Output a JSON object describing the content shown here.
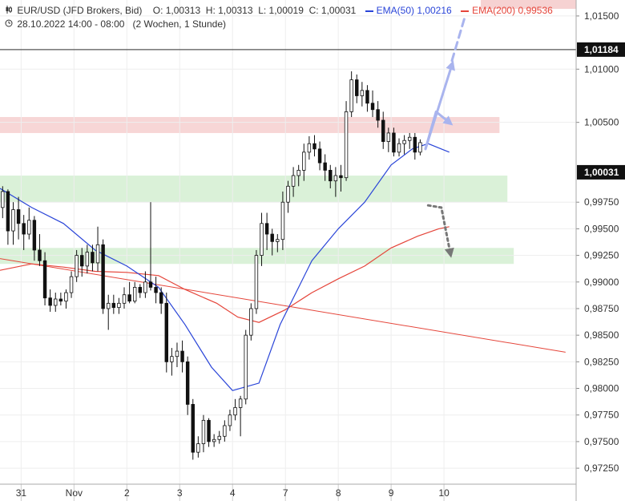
{
  "header": {
    "symbol_icon": "candlestick-icon",
    "clock_icon": "clock-icon",
    "title": "EUR/USD (JFD Brokers, Bid)",
    "open": "O: 1,00313",
    "high": "H: 1,00313",
    "low": "L: 1,00019",
    "close": "C: 1,00031",
    "ema50_label": "EMA(50)",
    "ema50_value": "1,00216",
    "ema200_label": "EMA(200)",
    "ema200_value": "0,99536",
    "date_range": "28.10.2022 14:00 - 08:00",
    "period": "(2 Wochen, 1 Stunde)"
  },
  "colors": {
    "ema50": "#2a45d8",
    "ema200": "#e5453a",
    "resistance_zone": "#f6d2d2",
    "support_zone": "#d6f0d4",
    "arrow_up": "#a9b4ee",
    "arrow_down": "#777777"
  },
  "chart_data": {
    "type": "candlestick",
    "y_ticks": [
      "1,01500",
      "1,01000",
      "1,00500",
      "0,99750",
      "0,99500",
      "0,99250",
      "0,99000",
      "0,98750",
      "0,98500",
      "0,98250",
      "0,98000",
      "0,97750",
      "0,97500",
      "0,97250"
    ],
    "y_range": [
      0.971,
      1.0165
    ],
    "x_labels": [
      "31",
      "Nov",
      "2",
      "3",
      "4",
      "7",
      "8",
      "9",
      "10"
    ],
    "x_label_positions": [
      0.5,
      1.5,
      2.5,
      3.5,
      4.5,
      5.5,
      6.5,
      7.5,
      8.5
    ],
    "x_range": [
      0.1,
      11.0
    ],
    "price_marker": "1,01184",
    "last_price": "1,00031",
    "zones": [
      {
        "name": "resistance",
        "y_from": 1.004,
        "y_to": 1.0055,
        "x_from": 0.1,
        "x_to": 9.55
      },
      {
        "name": "support-upper",
        "y_from": 0.9975,
        "y_to": 1.0,
        "x_from": 0.1,
        "x_to": 9.7
      },
      {
        "name": "support-lower",
        "y_from": 0.9917,
        "y_to": 0.9932,
        "x_from": 0.1,
        "x_to": 9.82
      }
    ],
    "trendline": {
      "from": [
        0.1,
        0.9922
      ],
      "to": [
        10.8,
        0.9834
      ]
    },
    "horizontal_line": 1.01184,
    "ema50": [
      [
        0.1,
        0.9988
      ],
      [
        0.7,
        0.997
      ],
      [
        1.3,
        0.9955
      ],
      [
        1.9,
        0.993
      ],
      [
        2.5,
        0.9915
      ],
      [
        3.1,
        0.9895
      ],
      [
        3.6,
        0.986
      ],
      [
        4.1,
        0.982
      ],
      [
        4.5,
        0.9798
      ],
      [
        5.0,
        0.9805
      ],
      [
        5.4,
        0.986
      ],
      [
        6.0,
        0.992
      ],
      [
        6.5,
        0.995
      ],
      [
        7.0,
        0.9975
      ],
      [
        7.5,
        1.001
      ],
      [
        7.9,
        1.0025
      ],
      [
        8.2,
        1.003
      ],
      [
        8.5,
        1.0024
      ],
      [
        8.6,
        1.0022
      ]
    ],
    "ema200": [
      [
        0.1,
        0.9911
      ],
      [
        0.7,
        0.9917
      ],
      [
        1.3,
        0.9914
      ],
      [
        1.9,
        0.991
      ],
      [
        2.5,
        0.9909
      ],
      [
        3.1,
        0.9906
      ],
      [
        3.6,
        0.9893
      ],
      [
        4.2,
        0.988
      ],
      [
        4.6,
        0.9867
      ],
      [
        5.0,
        0.9862
      ],
      [
        5.5,
        0.9874
      ],
      [
        6.0,
        0.989
      ],
      [
        6.5,
        0.9903
      ],
      [
        7.0,
        0.9915
      ],
      [
        7.5,
        0.9932
      ],
      [
        8.0,
        0.9943
      ],
      [
        8.4,
        0.995
      ],
      [
        8.6,
        0.9952
      ]
    ],
    "ohlc": [
      [
        0.15,
        0.997,
        0.999,
        0.996,
        0.9985
      ],
      [
        0.25,
        0.9985,
        0.9987,
        0.9935,
        0.9948
      ],
      [
        0.35,
        0.9948,
        0.9975,
        0.9935,
        0.9968
      ],
      [
        0.45,
        0.9968,
        0.998,
        0.994,
        0.9955
      ],
      [
        0.55,
        0.9955,
        0.9963,
        0.993,
        0.9945
      ],
      [
        0.65,
        0.9945,
        0.997,
        0.994,
        0.9958
      ],
      [
        0.75,
        0.9958,
        0.9962,
        0.992,
        0.993
      ],
      [
        0.85,
        0.993,
        0.9945,
        0.9915,
        0.992
      ],
      [
        0.95,
        0.992,
        0.9928,
        0.9878,
        0.9885
      ],
      [
        1.05,
        0.9885,
        0.9893,
        0.9872,
        0.9878
      ],
      [
        1.15,
        0.9878,
        0.989,
        0.9872,
        0.9884
      ],
      [
        1.25,
        0.9884,
        0.989,
        0.9878,
        0.9882
      ],
      [
        1.35,
        0.9882,
        0.9893,
        0.9875,
        0.989
      ],
      [
        1.45,
        0.989,
        0.991,
        0.9885,
        0.9905
      ],
      [
        1.55,
        0.9905,
        0.993,
        0.99,
        0.9925
      ],
      [
        1.65,
        0.9925,
        0.9932,
        0.9905,
        0.9915
      ],
      [
        1.75,
        0.9915,
        0.9935,
        0.9908,
        0.9928
      ],
      [
        1.85,
        0.9928,
        0.9935,
        0.991,
        0.9918
      ],
      [
        1.95,
        0.9918,
        0.9952,
        0.991,
        0.9935
      ],
      [
        2.05,
        0.9935,
        0.994,
        0.987,
        0.9875
      ],
      [
        2.15,
        0.9875,
        0.9888,
        0.9855,
        0.988
      ],
      [
        2.25,
        0.988,
        0.9888,
        0.987,
        0.9876
      ],
      [
        2.35,
        0.9876,
        0.9885,
        0.987,
        0.988
      ],
      [
        2.45,
        0.988,
        0.9895,
        0.9875,
        0.9888
      ],
      [
        2.55,
        0.9888,
        0.99,
        0.988,
        0.9882
      ],
      [
        2.65,
        0.9882,
        0.99,
        0.988,
        0.9895
      ],
      [
        2.75,
        0.9895,
        0.9898,
        0.9885,
        0.989
      ],
      [
        2.85,
        0.989,
        0.991,
        0.9885,
        0.99
      ],
      [
        2.95,
        0.99,
        0.9975,
        0.9892,
        0.9895
      ],
      [
        3.05,
        0.9895,
        0.9905,
        0.988,
        0.989
      ],
      [
        3.15,
        0.989,
        0.9895,
        0.987,
        0.988
      ],
      [
        3.25,
        0.988,
        0.989,
        0.9815,
        0.9825
      ],
      [
        3.35,
        0.9825,
        0.9838,
        0.9812,
        0.983
      ],
      [
        3.45,
        0.983,
        0.9843,
        0.982,
        0.9835
      ],
      [
        3.55,
        0.9835,
        0.9845,
        0.9815,
        0.9825
      ],
      [
        3.65,
        0.9825,
        0.983,
        0.9775,
        0.9785
      ],
      [
        3.75,
        0.9785,
        0.979,
        0.9733,
        0.974
      ],
      [
        3.85,
        0.974,
        0.9755,
        0.9735,
        0.9748
      ],
      [
        3.95,
        0.9748,
        0.9775,
        0.974,
        0.977
      ],
      [
        4.05,
        0.977,
        0.9772,
        0.9745,
        0.975
      ],
      [
        4.15,
        0.975,
        0.9757,
        0.9745,
        0.9752
      ],
      [
        4.25,
        0.9752,
        0.976,
        0.9748,
        0.9755
      ],
      [
        4.35,
        0.9755,
        0.977,
        0.975,
        0.9765
      ],
      [
        4.45,
        0.9765,
        0.978,
        0.976,
        0.9775
      ],
      [
        4.55,
        0.9775,
        0.979,
        0.977,
        0.9782
      ],
      [
        4.65,
        0.9782,
        0.9793,
        0.9755,
        0.979
      ],
      [
        4.75,
        0.979,
        0.9855,
        0.9785,
        0.985
      ],
      [
        4.85,
        0.985,
        0.988,
        0.9845,
        0.9875
      ],
      [
        4.95,
        0.9875,
        0.993,
        0.987,
        0.9925
      ],
      [
        5.05,
        0.9925,
        0.9965,
        0.9915,
        0.9955
      ],
      [
        5.15,
        0.9955,
        0.9965,
        0.993,
        0.9945
      ],
      [
        5.25,
        0.9945,
        0.995,
        0.9925,
        0.9938
      ],
      [
        5.35,
        0.9938,
        0.9945,
        0.9928,
        0.994
      ],
      [
        5.45,
        0.994,
        0.9985,
        0.993,
        0.9975
      ],
      [
        5.55,
        0.9975,
        0.9995,
        0.9965,
        0.999
      ],
      [
        5.65,
        0.999,
        1.0008,
        0.998,
        1.0
      ],
      [
        5.75,
        1.0,
        1.001,
        0.999,
        1.0005
      ],
      [
        5.85,
        1.0005,
        1.003,
        0.9995,
        1.0022
      ],
      [
        5.95,
        1.0022,
        1.0037,
        1.0015,
        1.003
      ],
      [
        6.05,
        1.003,
        1.0038,
        1.0018,
        1.0025
      ],
      [
        6.15,
        1.0025,
        1.0032,
        1.0005,
        1.0012
      ],
      [
        6.25,
        1.0012,
        1.002,
        0.9995,
        1.0005
      ],
      [
        6.35,
        1.0005,
        1.001,
        0.9988,
        0.9995
      ],
      [
        6.45,
        0.9995,
        1.0008,
        0.998,
        1.0
      ],
      [
        6.55,
        1.0,
        1.001,
        0.9985,
        0.9998
      ],
      [
        6.65,
        0.9998,
        1.007,
        0.9995,
        1.006
      ],
      [
        6.75,
        1.006,
        1.0098,
        1.0055,
        1.009
      ],
      [
        6.85,
        1.009,
        1.0095,
        1.0068,
        1.0075
      ],
      [
        6.95,
        1.0075,
        1.0088,
        1.0065,
        1.008
      ],
      [
        7.05,
        1.008,
        1.0085,
        1.006,
        1.0068
      ],
      [
        7.15,
        1.0068,
        1.008,
        1.0055,
        1.0062
      ],
      [
        7.25,
        1.0062,
        1.007,
        1.0045,
        1.0052
      ],
      [
        7.35,
        1.0052,
        1.006,
        1.0025,
        1.0032
      ],
      [
        7.45,
        1.0032,
        1.0045,
        1.0022,
        1.004
      ],
      [
        7.55,
        1.004,
        1.0045,
        1.0018,
        1.0022
      ],
      [
        7.65,
        1.0022,
        1.0035,
        1.0018,
        1.003
      ],
      [
        7.75,
        1.003,
        1.0038,
        1.002,
        1.0033
      ],
      [
        7.85,
        1.0033,
        1.004,
        1.0025,
        1.0036
      ],
      [
        7.95,
        1.0036,
        1.004,
        1.0015,
        1.0022
      ],
      [
        8.05,
        1.0022,
        1.0034,
        1.0019,
        1.0031
      ]
    ],
    "annotations": [
      {
        "type": "arrow",
        "style": "solid",
        "color": "arrow_up",
        "points": [
          [
            8.15,
            1.0025
          ],
          [
            8.65,
            1.0104
          ]
        ]
      },
      {
        "type": "arrow",
        "style": "solid",
        "color": "arrow_up",
        "points": [
          [
            8.15,
            1.0025
          ],
          [
            8.35,
            1.006
          ],
          [
            8.6,
            1.005
          ]
        ]
      },
      {
        "type": "line",
        "style": "dashed",
        "color": "arrow_up",
        "points": [
          [
            8.65,
            1.0108
          ],
          [
            8.9,
            1.015
          ]
        ]
      },
      {
        "type": "arrow",
        "style": "dotted",
        "color": "arrow_down",
        "points": [
          [
            8.2,
            0.9972
          ],
          [
            8.45,
            0.997
          ],
          [
            8.62,
            0.9927
          ]
        ]
      }
    ]
  }
}
